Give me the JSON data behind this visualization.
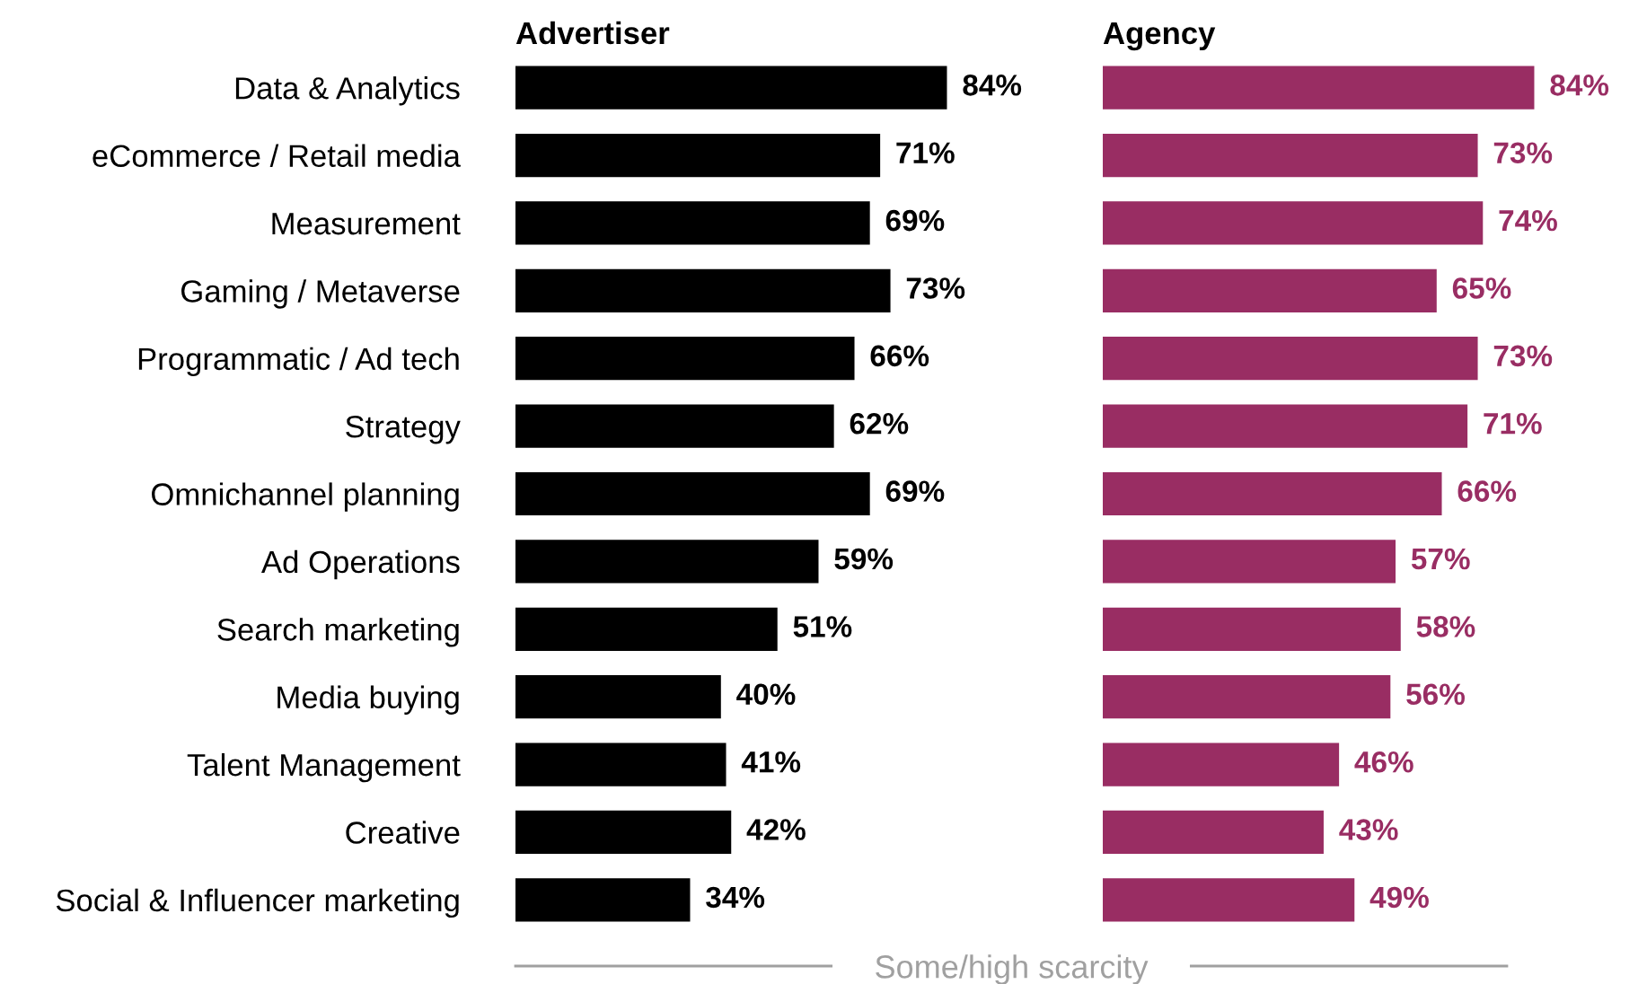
{
  "chart_data": [
    {
      "type": "bar",
      "orientation": "horizontal",
      "title": "Advertiser",
      "tick_labels": "y",
      "categories": [
        "Data & Analytics",
        "eCommerce / Retail media",
        "Measurement",
        "Gaming / Metaverse",
        "Programmatic / Ad tech",
        "Strategy",
        "Omnichannel planning",
        "Ad Operations",
        "Search marketing",
        "Media buying",
        "Talent Management",
        "Creative",
        "Social & Influencer marketing"
      ],
      "series": [
        {
          "color": "#000000",
          "values": [
            84,
            71,
            69,
            73,
            66,
            62,
            69,
            59,
            51,
            40,
            41,
            42,
            34
          ],
          "value_labels": [
            "84%",
            "71%",
            "69%",
            "73%",
            "66%",
            "62%",
            "69%",
            "59%",
            "51%",
            "40%",
            "41%",
            "42%",
            "34%"
          ]
        }
      ],
      "annotations": [
        "Some/high scarcity"
      ]
    },
    {
      "type": "bar",
      "orientation": "horizontal",
      "title": "Agency",
      "tick_labels": false,
      "categories": [
        null,
        null,
        null,
        null,
        null,
        null,
        null,
        null,
        null,
        null,
        null,
        null,
        null
      ],
      "series": [
        {
          "color": "#992d63",
          "values": [
            84,
            73,
            74,
            65,
            73,
            71,
            66,
            57,
            58,
            56,
            46,
            43,
            49
          ],
          "value_labels": [
            "84%",
            "73%",
            "74%",
            "65%",
            "73%",
            "71%",
            "66%",
            "57%",
            "58%",
            "56%",
            "46%",
            "43%",
            "49%"
          ]
        }
      ]
    }
  ]
}
